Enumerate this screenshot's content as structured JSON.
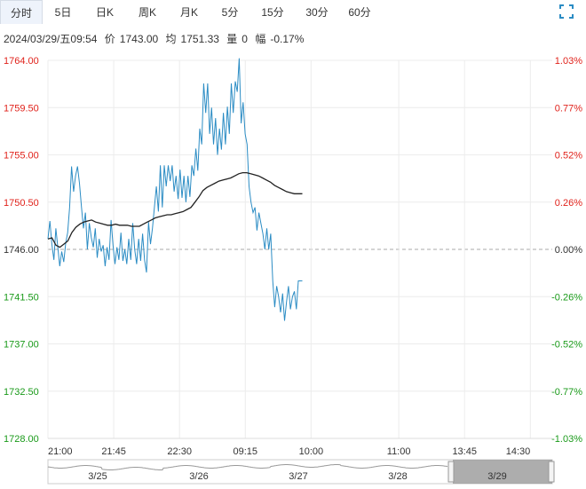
{
  "tabs": [
    {
      "label": "分时",
      "active": true
    },
    {
      "label": "5日",
      "active": false
    },
    {
      "label": "日K",
      "active": false
    },
    {
      "label": "周K",
      "active": false
    },
    {
      "label": "月K",
      "active": false
    },
    {
      "label": "5分",
      "active": false
    },
    {
      "label": "15分",
      "active": false
    },
    {
      "label": "30分",
      "active": false
    },
    {
      "label": "60分",
      "active": false
    }
  ],
  "info": {
    "datetime": "2024/03/29/五09:54",
    "price_label": "价",
    "price": "1743.00",
    "avg_label": "均",
    "avg": "1751.33",
    "volume_label": "量",
    "volume": "0",
    "change_label": "幅",
    "change": "-0.17%"
  },
  "colors": {
    "up": "#e0221b",
    "down": "#1a9a1a",
    "price_line": "#2b8cc4",
    "avg_line": "#222222",
    "grid": "#ececec",
    "baseline": "#aaaaaa"
  },
  "chart_data": {
    "type": "line",
    "title": "",
    "base_price": 1746.0,
    "y_ticks": [
      "1764.00",
      "1759.50",
      "1755.00",
      "1750.50",
      "1746.00",
      "1741.50",
      "1737.00",
      "1732.50",
      "1728.00"
    ],
    "y_percent_ticks": [
      "1.03%",
      "0.77%",
      "0.52%",
      "0.26%",
      "0.00%",
      "-0.26%",
      "-0.52%",
      "-0.77%",
      "-1.03%"
    ],
    "ylim": [
      1728.0,
      1764.0
    ],
    "x_ticks": [
      "21:00",
      "21:45",
      "22:30",
      "09:15",
      "10:00",
      "11:00",
      "13:45",
      "14:30"
    ],
    "total_minutes": 345,
    "minutes_elapsed": 174,
    "series": [
      {
        "name": "价",
        "values": [
          1747.0,
          1748.7,
          1746.5,
          1745.0,
          1748.0,
          1746.2,
          1744.4,
          1745.8,
          1744.8,
          1746.6,
          1747.6,
          1750.0,
          1753.9,
          1751.5,
          1753.0,
          1753.9,
          1752.3,
          1750.0,
          1748.0,
          1749.5,
          1746.0,
          1748.5,
          1747.1,
          1746.2,
          1748.0,
          1745.2,
          1747.0,
          1745.8,
          1746.4,
          1744.4,
          1746.2,
          1745.0,
          1748.8,
          1746.4,
          1744.6,
          1746.2,
          1745.0,
          1747.6,
          1744.9,
          1746.0,
          1744.6,
          1747.0,
          1745.0,
          1748.5,
          1746.0,
          1744.6,
          1747.0,
          1744.9,
          1747.5,
          1745.0,
          1743.8,
          1748.6,
          1746.5,
          1748.0,
          1750.0,
          1752.0,
          1749.6,
          1754.0,
          1750.0,
          1754.0,
          1752.0,
          1754.0,
          1752.5,
          1754.0,
          1751.5,
          1753.0,
          1750.8,
          1753.6,
          1750.9,
          1753.0,
          1750.5,
          1753.0,
          1751.0,
          1754.0,
          1753.0,
          1755.6,
          1753.5,
          1757.5,
          1756.0,
          1761.8,
          1759.0,
          1761.8,
          1757.0,
          1759.5,
          1756.0,
          1758.5,
          1755.0,
          1757.5,
          1755.5,
          1759.0,
          1756.0,
          1759.6,
          1757.0,
          1761.8,
          1759.0,
          1762.0,
          1761.0,
          1764.2,
          1758.0,
          1760.0,
          1757.0,
          1756.0,
          1752.0,
          1750.5,
          1749.5,
          1750.0,
          1747.8,
          1749.5,
          1748.5,
          1747.5,
          1746.0,
          1748.0,
          1746.0,
          1747.5,
          1743.0,
          1740.5,
          1742.5,
          1741.5,
          1740.0,
          1741.8,
          1739.2,
          1741.0,
          1742.5,
          1740.3,
          1741.5,
          1742.0,
          1740.3,
          1743.0,
          1743.0,
          1743.0
        ],
        "color": "#2b8cc4"
      },
      {
        "name": "均",
        "values": [
          1747.0,
          1747.1,
          1746.4,
          1746.2,
          1746.5,
          1746.8,
          1747.6,
          1748.1,
          1748.4,
          1748.6,
          1748.7,
          1748.8,
          1748.6,
          1748.5,
          1748.4,
          1748.3,
          1748.3,
          1748.4,
          1748.3,
          1748.3,
          1748.3,
          1748.2,
          1748.2,
          1748.2,
          1748.4,
          1748.6,
          1748.8,
          1749.0,
          1749.1,
          1749.2,
          1749.3,
          1749.3,
          1749.4,
          1749.5,
          1749.6,
          1749.8,
          1750.0,
          1750.5,
          1751.0,
          1751.6,
          1751.9,
          1752.1,
          1752.3,
          1752.5,
          1752.6,
          1752.7,
          1752.8,
          1753.0,
          1753.2,
          1753.3,
          1753.3,
          1753.2,
          1753.1,
          1753.0,
          1752.8,
          1752.6,
          1752.4,
          1752.1,
          1751.9,
          1751.7,
          1751.5,
          1751.4,
          1751.3,
          1751.3,
          1751.3
        ],
        "color": "#222222"
      }
    ],
    "avg_x_minutes": [
      0,
      3,
      7,
      10,
      12,
      15,
      20,
      25,
      30,
      35,
      40,
      45,
      50,
      55,
      60,
      65,
      70,
      75,
      80,
      85,
      90,
      95,
      100,
      105,
      108,
      110,
      112,
      114,
      115,
      116,
      117,
      118,
      119,
      120,
      121,
      122,
      124,
      126,
      128,
      130,
      132,
      134,
      136,
      138,
      140,
      142,
      144,
      146,
      148,
      150,
      152,
      154,
      156,
      158,
      160,
      162,
      164,
      166,
      168,
      170,
      172,
      174,
      176,
      178,
      174
    ]
  },
  "navigator": {
    "dates": [
      "3/25",
      "3/26",
      "3/27",
      "3/28",
      "3/29"
    ]
  }
}
